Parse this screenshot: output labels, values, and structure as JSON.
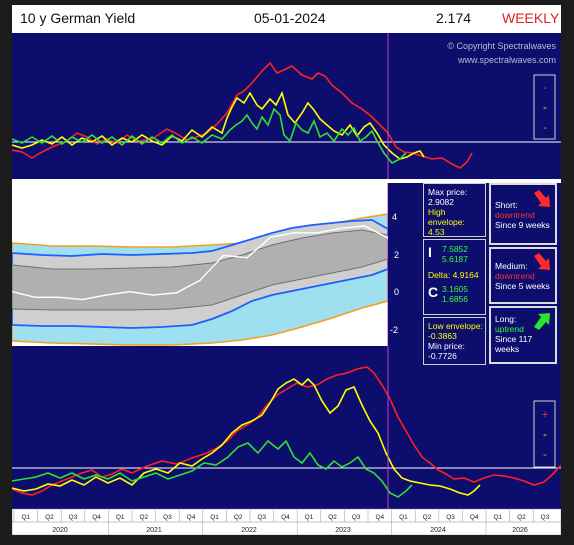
{
  "header": {
    "title": "10 y German Yield",
    "date": "05-01-2024",
    "price": "2.174",
    "timeframe": "WEEKLY"
  },
  "watermark": {
    "copyright": "© Copyright Spectralwaves",
    "website": "www.spectralwaves.com"
  },
  "top_legend": {
    "marks": [
      "-",
      "-",
      "-"
    ]
  },
  "bottom_legend": {
    "marks": [
      "+",
      "-",
      "-"
    ]
  },
  "scale_labels": [
    "4",
    "2",
    "0",
    "-2"
  ],
  "stats": {
    "max_price_label": "Max price:",
    "max_price": "2.9082",
    "high_env_label": "High envelope:",
    "high_env": "4.53",
    "i_label": "I",
    "i_val1": "7.5852",
    "i_val2": "5.6187",
    "delta": "Delta: 4.9164",
    "c_label": "C",
    "c_val1": "3.1605",
    "c_val2": "1.6856",
    "low_env_label": "Low envelope:",
    "low_env": "-0.3863",
    "min_price_label": "Min price:",
    "min_price": "-0.7726"
  },
  "signals": {
    "short": {
      "label": "Short:",
      "trend": "downtrend",
      "since": "Since 9 weeks"
    },
    "medium": {
      "label": "Medium:",
      "trend": "downtrend",
      "since": "Since 5 weeks"
    },
    "long": {
      "label": "Long:",
      "trend": "uptrend",
      "since": "Since 117 weeks"
    }
  },
  "axis": {
    "quarters": [
      "Q1",
      "Q2",
      "Q3",
      "Q4",
      "Q1",
      "Q2",
      "Q3",
      "Q4",
      "Q1",
      "Q2",
      "Q3",
      "Q4",
      "Q1",
      "Q2",
      "Q3",
      "Q4",
      "Q1",
      "Q2",
      "Q3",
      "Q4",
      "Q1",
      "Q2",
      "Q3"
    ],
    "years": [
      "2020",
      "2021",
      "2022",
      "2023",
      "2024",
      "2026"
    ]
  },
  "colors": {
    "background": "#0d0d6e",
    "price": "#ffffff",
    "envelope": "#f0a020",
    "band_outer": "#1e5fff",
    "band_fill": "#9fe0f0",
    "band_inner": "#c8c8c8",
    "osc_short": "#ff2020",
    "osc_medium": "#ffff00",
    "osc_long": "#30e030",
    "cursor": "#c040c0"
  },
  "chart_data": {
    "type": "line",
    "x": [
      "2020-Q1",
      "2020-Q2",
      "2020-Q3",
      "2020-Q4",
      "2021-Q1",
      "2021-Q2",
      "2021-Q3",
      "2021-Q4",
      "2022-Q1",
      "2022-Q2",
      "2022-Q3",
      "2022-Q4",
      "2023-Q1",
      "2023-Q2",
      "2023-Q3",
      "2023-Q4",
      "2024-Q1"
    ],
    "ylim": [
      -2.6,
      4.6
    ],
    "series": [
      {
        "values": [
          -0.2,
          -0.45,
          -0.45,
          -0.55,
          -0.35,
          -0.2,
          -0.35,
          -0.25,
          0.3,
          1.4,
          1.3,
          2.2,
          2.4,
          2.4,
          2.6,
          2.7,
          2.17
        ]
      }
    ]
  }
}
